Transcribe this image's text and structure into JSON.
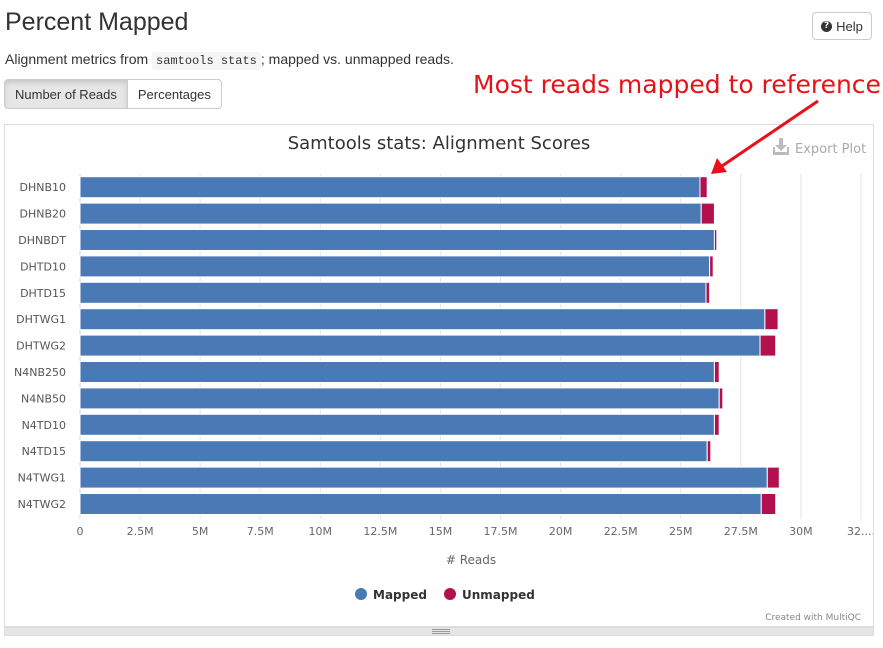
{
  "page": {
    "title": "Percent Mapped",
    "help_label": "Help",
    "desc_before": "Alignment metrics from ",
    "desc_code": "samtools stats",
    "desc_after": "; mapped vs. unmapped reads.",
    "tabs": [
      {
        "label": "Number of Reads",
        "active": true
      },
      {
        "label": "Percentages",
        "active": false
      }
    ],
    "annotation": "Most reads mapped to reference",
    "export_label": "Export Plot",
    "credit": "Created with MultiQC"
  },
  "colors": {
    "mapped": "#4a7ab5",
    "unmapped": "#b3104e",
    "annotation": "#e8101a"
  },
  "chart_data": {
    "type": "bar",
    "orientation": "horizontal",
    "stacked": true,
    "title": "Samtools stats: Alignment Scores",
    "xlabel": "# Reads",
    "ylabel": "",
    "xlim": [
      0,
      32.5
    ],
    "x_unit": "M",
    "xticks": [
      "0",
      "2.5M",
      "5M",
      "7.5M",
      "10M",
      "12.5M",
      "15M",
      "17.5M",
      "20M",
      "22.5M",
      "25M",
      "27.5M",
      "30M",
      "32...."
    ],
    "categories": [
      "DHNB10",
      "DHNB20",
      "DHNBDT",
      "DHTD10",
      "DHTD15",
      "DHTWG1",
      "DHTWG2",
      "N4NB250",
      "N4NB50",
      "N4TD10",
      "N4TD15",
      "N4TWG1",
      "N4TWG2"
    ],
    "series": [
      {
        "name": "Mapped",
        "values": [
          25.8,
          25.85,
          26.4,
          26.2,
          26.05,
          28.5,
          28.3,
          26.4,
          26.6,
          26.4,
          26.1,
          28.6,
          28.35
        ]
      },
      {
        "name": "Unmapped",
        "values": [
          0.3,
          0.55,
          0.1,
          0.15,
          0.15,
          0.55,
          0.65,
          0.2,
          0.15,
          0.2,
          0.15,
          0.5,
          0.6
        ]
      }
    ],
    "grid": true,
    "legend_position": "bottom"
  }
}
